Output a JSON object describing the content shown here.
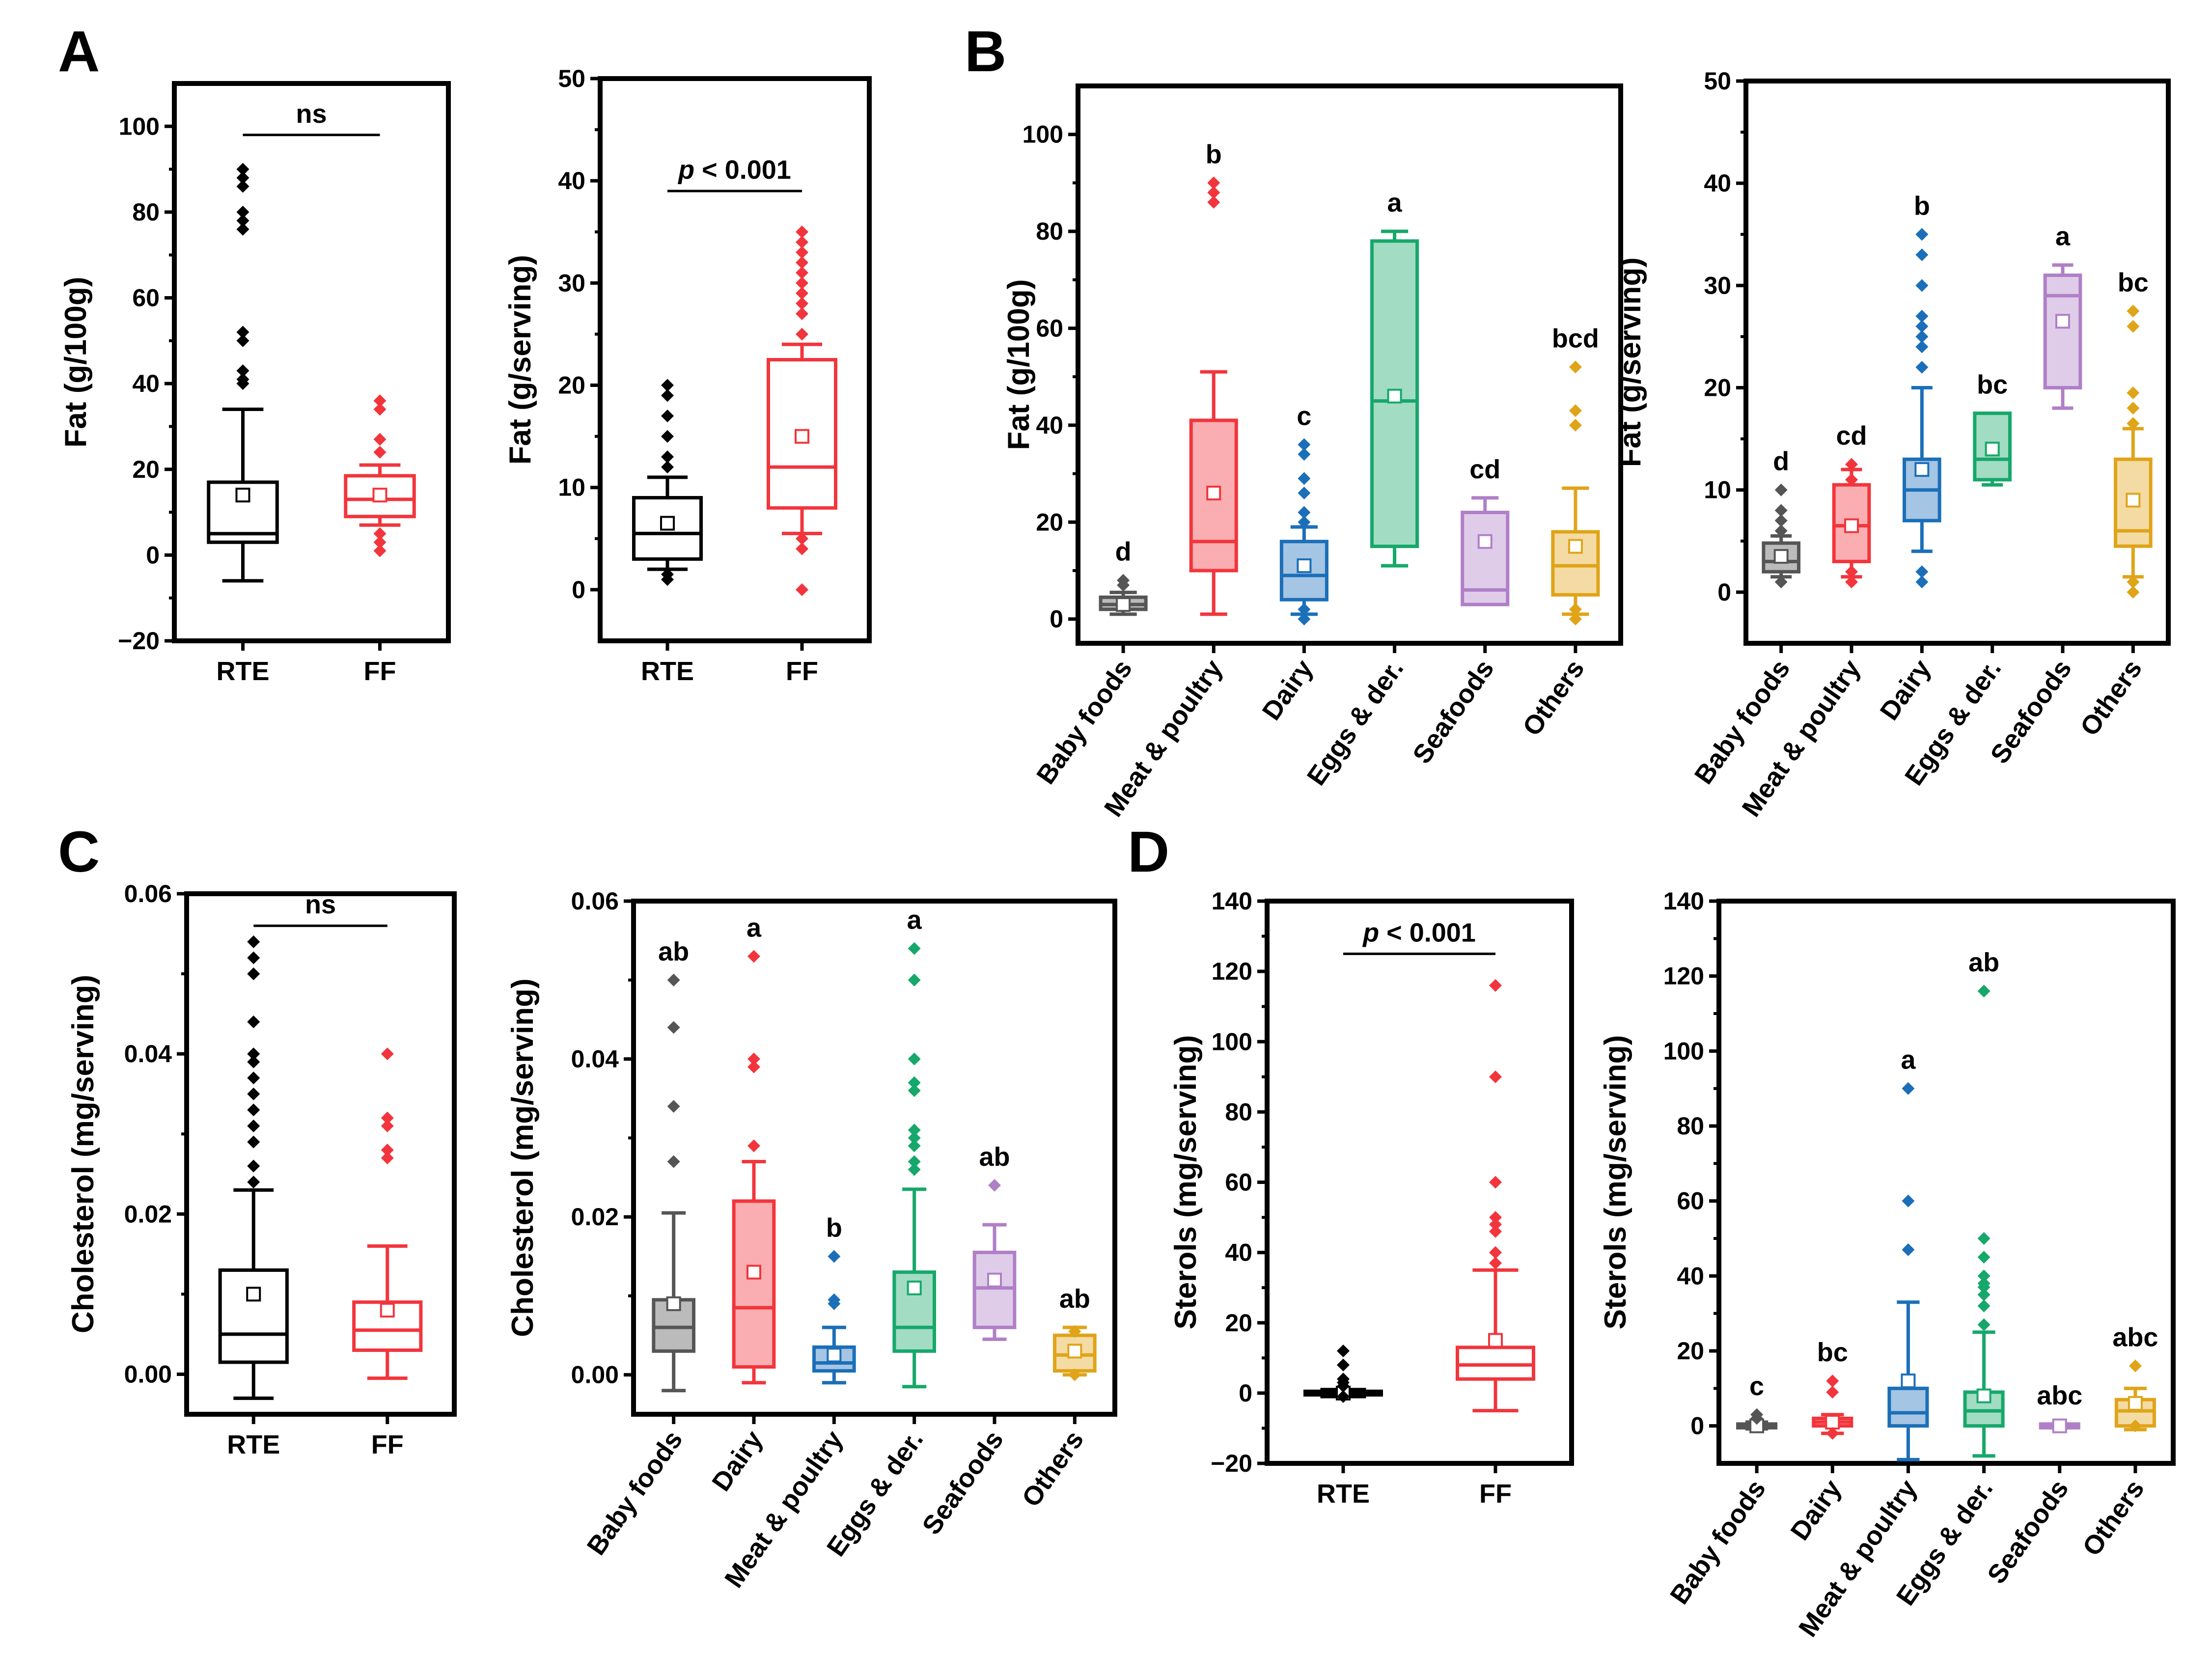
{
  "panel_letters": [
    "A",
    "B",
    "C",
    "D"
  ],
  "colors": {
    "black": "#000000",
    "red": "#f2353c",
    "blue": "#1b6fb8",
    "green": "#16a86a",
    "purple": "#b07fc7",
    "orange": "#e0a419",
    "gray": "#555555"
  },
  "chart_data": [
    {
      "id": "A1",
      "type": "box",
      "panel": "A",
      "ylabel": "Fat (g/100g)",
      "ylim": [
        -20,
        110
      ],
      "yticks": [
        -20,
        0,
        20,
        40,
        60,
        80,
        100
      ],
      "tick_labels": [
        "−20",
        "0",
        "20",
        "40",
        "60",
        "80",
        "100"
      ],
      "categories": [
        "RTE",
        "FF"
      ],
      "rotate": false,
      "bracket": {
        "from": 0,
        "to": 1,
        "y": 98,
        "label": "ns",
        "italic_p": false
      },
      "boxes": [
        {
          "color": "black",
          "fill": false,
          "q1": 3,
          "median": 5,
          "q3": 17,
          "lo": -6,
          "hi": 34,
          "mean": 14,
          "outliers": [
            40,
            41,
            43,
            50,
            52,
            76,
            78,
            80,
            86,
            88,
            90
          ]
        },
        {
          "color": "red",
          "fill": false,
          "q1": 9,
          "median": 13,
          "q3": 18.5,
          "lo": 7,
          "hi": 21,
          "mean": 14,
          "outliers": [
            1,
            3,
            5,
            24,
            27,
            34,
            36
          ]
        }
      ]
    },
    {
      "id": "A2",
      "type": "box",
      "panel": "A",
      "ylabel": "Fat (g/serving)",
      "ylim": [
        -5,
        50
      ],
      "yticks": [
        0,
        10,
        20,
        30,
        40,
        50
      ],
      "tick_labels": [
        "0",
        "10",
        "20",
        "30",
        "40",
        "50"
      ],
      "categories": [
        "RTE",
        "FF"
      ],
      "rotate": false,
      "bracket": {
        "from": 0,
        "to": 1,
        "y": 39,
        "label": "p < 0.001",
        "italic_p": true
      },
      "boxes": [
        {
          "color": "black",
          "fill": false,
          "q1": 3,
          "median": 5.5,
          "q3": 9,
          "lo": 2,
          "hi": 11,
          "mean": 6.5,
          "outliers": [
            1,
            1.5,
            12,
            13,
            15,
            17,
            19,
            20
          ]
        },
        {
          "color": "red",
          "fill": false,
          "q1": 8,
          "median": 12,
          "q3": 22.5,
          "lo": 5.5,
          "hi": 24,
          "mean": 15,
          "outliers": [
            0,
            4,
            5,
            25,
            27,
            28,
            29,
            30,
            31,
            32,
            33,
            34,
            35
          ]
        }
      ]
    },
    {
      "id": "B1",
      "type": "box",
      "panel": "B",
      "ylabel": "Fat (g/100g)",
      "ylim": [
        -5,
        110
      ],
      "yticks": [
        0,
        20,
        40,
        60,
        80,
        100
      ],
      "tick_labels": [
        "0",
        "20",
        "40",
        "60",
        "80",
        "100"
      ],
      "categories": [
        "Baby foods",
        "Meat & poultry",
        "Dairy",
        "Eggs & der.",
        "Seafoods",
        "Others"
      ],
      "rotate": true,
      "sig_labels": [
        "d",
        "b",
        "c",
        "a",
        "cd",
        "bcd"
      ],
      "boxes": [
        {
          "color": "gray",
          "fill": true,
          "q1": 2,
          "median": 3,
          "q3": 4.5,
          "lo": 1,
          "hi": 5.5,
          "mean": 3,
          "outliers": [
            7,
            8
          ]
        },
        {
          "color": "red",
          "fill": true,
          "q1": 10,
          "median": 16,
          "q3": 41,
          "lo": 1,
          "hi": 51,
          "mean": 26,
          "outliers": [
            86,
            88,
            90
          ]
        },
        {
          "color": "blue",
          "fill": true,
          "q1": 4,
          "median": 9,
          "q3": 16,
          "lo": 1,
          "hi": 19,
          "mean": 11,
          "outliers": [
            0,
            2,
            20,
            22,
            26,
            29,
            34,
            36
          ]
        },
        {
          "color": "green",
          "fill": true,
          "q1": 15,
          "median": 45,
          "q3": 78,
          "lo": 11,
          "hi": 80,
          "mean": 46,
          "outliers": []
        },
        {
          "color": "purple",
          "fill": true,
          "q1": 3,
          "median": 6,
          "q3": 22,
          "lo": 3,
          "hi": 25,
          "mean": 16,
          "outliers": []
        },
        {
          "color": "orange",
          "fill": true,
          "q1": 5,
          "median": 11,
          "q3": 18,
          "lo": 1,
          "hi": 27,
          "mean": 15,
          "outliers": [
            0,
            2,
            40,
            43,
            52
          ]
        }
      ]
    },
    {
      "id": "B2",
      "type": "box",
      "panel": "B",
      "ylabel": "Fat (g/serving)",
      "ylim": [
        -5,
        50
      ],
      "yticks": [
        0,
        10,
        20,
        30,
        40,
        50
      ],
      "tick_labels": [
        "0",
        "10",
        "20",
        "30",
        "40",
        "50"
      ],
      "categories": [
        "Baby foods",
        "Meat & poultry",
        "Dairy",
        "Eggs & der.",
        "Seafoods",
        "Others"
      ],
      "rotate": true,
      "sig_labels": [
        "d",
        "cd",
        "b",
        "bc",
        "a",
        "bc"
      ],
      "boxes": [
        {
          "color": "gray",
          "fill": true,
          "q1": 2,
          "median": 3,
          "q3": 4.8,
          "lo": 1.5,
          "hi": 5.5,
          "mean": 3.5,
          "outliers": [
            1,
            6,
            7,
            8,
            10
          ]
        },
        {
          "color": "red",
          "fill": true,
          "q1": 3,
          "median": 6.5,
          "q3": 10.5,
          "lo": 1.5,
          "hi": 12,
          "mean": 6.5,
          "outliers": [
            1,
            2,
            11,
            12.5
          ]
        },
        {
          "color": "blue",
          "fill": true,
          "q1": 7,
          "median": 10,
          "q3": 13,
          "lo": 4,
          "hi": 20,
          "mean": 12,
          "outliers": [
            1,
            2,
            22,
            24,
            25,
            26,
            27,
            30,
            33,
            35
          ]
        },
        {
          "color": "green",
          "fill": true,
          "q1": 11,
          "median": 13,
          "q3": 17.5,
          "lo": 10.5,
          "hi": 17.5,
          "mean": 14,
          "outliers": []
        },
        {
          "color": "purple",
          "fill": true,
          "q1": 20,
          "median": 29,
          "q3": 31,
          "lo": 18,
          "hi": 32,
          "mean": 26.5,
          "outliers": []
        },
        {
          "color": "orange",
          "fill": true,
          "q1": 4.5,
          "median": 6,
          "q3": 13,
          "lo": 1.5,
          "hi": 16,
          "mean": 9,
          "outliers": [
            0,
            1,
            16.5,
            18,
            19.5,
            26,
            27.5
          ]
        }
      ]
    },
    {
      "id": "C1",
      "type": "box",
      "panel": "C",
      "ylabel": "Cholesterol (mg/serving)",
      "ylim": [
        -0.005,
        0.06
      ],
      "yticks": [
        0,
        0.02,
        0.04,
        0.06
      ],
      "tick_labels": [
        "0.00",
        "0.02",
        "0.04",
        "0.06"
      ],
      "categories": [
        "RTE",
        "FF"
      ],
      "rotate": false,
      "bracket": {
        "from": 0,
        "to": 1,
        "y": 0.056,
        "label": "ns",
        "italic_p": false
      },
      "boxes": [
        {
          "color": "black",
          "fill": false,
          "q1": 0.0015,
          "median": 0.005,
          "q3": 0.013,
          "lo": -0.003,
          "hi": 0.023,
          "mean": 0.01,
          "outliers": [
            0.024,
            0.026,
            0.029,
            0.031,
            0.033,
            0.035,
            0.037,
            0.039,
            0.04,
            0.044,
            0.05,
            0.052,
            0.054
          ]
        },
        {
          "color": "red",
          "fill": false,
          "q1": 0.003,
          "median": 0.0055,
          "q3": 0.009,
          "lo": -0.0005,
          "hi": 0.016,
          "mean": 0.008,
          "outliers": [
            0.027,
            0.028,
            0.031,
            0.032,
            0.04
          ]
        }
      ]
    },
    {
      "id": "C2",
      "type": "box",
      "panel": "C",
      "ylabel": "Cholesterol (mg/serving)",
      "ylim": [
        -0.005,
        0.06
      ],
      "yticks": [
        0,
        0.02,
        0.04,
        0.06
      ],
      "tick_labels": [
        "0.00",
        "0.02",
        "0.04",
        "0.06"
      ],
      "categories": [
        "Baby foods",
        "Dairy",
        "Meat & poultry",
        "Eggs & der.",
        "Seafoods",
        "Others"
      ],
      "rotate": true,
      "sig_labels": [
        "ab",
        "a",
        "b",
        "a",
        "ab",
        "ab"
      ],
      "boxes": [
        {
          "color": "gray",
          "fill": true,
          "q1": 0.003,
          "median": 0.006,
          "q3": 0.0095,
          "lo": -0.002,
          "hi": 0.0205,
          "mean": 0.009,
          "outliers": [
            0.027,
            0.034,
            0.044,
            0.05
          ]
        },
        {
          "color": "red",
          "fill": true,
          "q1": 0.001,
          "median": 0.0085,
          "q3": 0.022,
          "lo": -0.001,
          "hi": 0.027,
          "mean": 0.013,
          "outliers": [
            0.029,
            0.039,
            0.04,
            0.053
          ]
        },
        {
          "color": "blue",
          "fill": true,
          "q1": 0.0005,
          "median": 0.0015,
          "q3": 0.0035,
          "lo": -0.001,
          "hi": 0.006,
          "mean": 0.0025,
          "outliers": [
            0.009,
            0.0095,
            0.015
          ]
        },
        {
          "color": "green",
          "fill": true,
          "q1": 0.003,
          "median": 0.006,
          "q3": 0.013,
          "lo": -0.0015,
          "hi": 0.0235,
          "mean": 0.011,
          "outliers": [
            0.026,
            0.027,
            0.029,
            0.03,
            0.031,
            0.036,
            0.037,
            0.04,
            0.05,
            0.054
          ]
        },
        {
          "color": "purple",
          "fill": true,
          "q1": 0.006,
          "median": 0.011,
          "q3": 0.0155,
          "lo": 0.0045,
          "hi": 0.019,
          "mean": 0.012,
          "outliers": [
            0.024
          ]
        },
        {
          "color": "orange",
          "fill": true,
          "q1": 0.0005,
          "median": 0.0025,
          "q3": 0.005,
          "lo": 0,
          "hi": 0.006,
          "mean": 0.003,
          "outliers": [
            0,
            0.0055
          ]
        }
      ]
    },
    {
      "id": "D1",
      "type": "box",
      "panel": "D",
      "ylabel": "Sterols (mg/serving)",
      "ylim": [
        -20,
        140
      ],
      "yticks": [
        -20,
        0,
        20,
        40,
        60,
        80,
        100,
        120,
        140
      ],
      "tick_labels": [
        "−20",
        "0",
        "20",
        "40",
        "60",
        "80",
        "100",
        "120",
        "140"
      ],
      "categories": [
        "RTE",
        "FF"
      ],
      "rotate": false,
      "bracket": {
        "from": 0,
        "to": 1,
        "y": 125,
        "label": "p < 0.001",
        "italic_p": true
      },
      "boxes": [
        {
          "color": "black",
          "fill": false,
          "q1": -0.5,
          "median": 0,
          "q3": 0.5,
          "lo": -1,
          "hi": 1,
          "mean": 0,
          "outliers": [
            -1,
            2,
            3,
            4,
            8,
            12
          ]
        },
        {
          "color": "red",
          "fill": false,
          "q1": 4,
          "median": 8,
          "q3": 13,
          "lo": -5,
          "hi": 35,
          "mean": 15,
          "outliers": [
            37,
            40,
            46,
            48,
            50,
            60,
            90,
            116
          ]
        }
      ]
    },
    {
      "id": "D2",
      "type": "box",
      "panel": "D",
      "ylabel": "Sterols (mg/serving)",
      "ylim": [
        -10,
        140
      ],
      "yticks": [
        0,
        20,
        40,
        60,
        80,
        100,
        120,
        140
      ],
      "tick_labels": [
        "0",
        "20",
        "40",
        "60",
        "80",
        "100",
        "120",
        "140"
      ],
      "categories": [
        "Baby foods",
        "Dairy",
        "Meat & poultry",
        "Eggs & der.",
        "Seafoods",
        "Others"
      ],
      "rotate": true,
      "sig_labels": [
        "c",
        "bc",
        "a",
        "ab",
        "abc",
        "abc"
      ],
      "boxes": [
        {
          "color": "gray",
          "fill": true,
          "q1": -0.5,
          "median": 0,
          "q3": 0.5,
          "lo": -0.8,
          "hi": 1,
          "mean": 0,
          "outliers": [
            2,
            3
          ]
        },
        {
          "color": "red",
          "fill": true,
          "q1": 0,
          "median": 1,
          "q3": 2,
          "lo": -2,
          "hi": 3,
          "mean": 1,
          "outliers": [
            -2,
            9,
            12
          ]
        },
        {
          "color": "blue",
          "fill": true,
          "q1": 0,
          "median": 3.5,
          "q3": 10,
          "lo": -9,
          "hi": 33,
          "mean": 12,
          "outliers": [
            47,
            60,
            90
          ]
        },
        {
          "color": "green",
          "fill": true,
          "q1": 0,
          "median": 4,
          "q3": 9,
          "lo": -8,
          "hi": 25,
          "mean": 8,
          "outliers": [
            27,
            32,
            35,
            37,
            38,
            40,
            45,
            50,
            116
          ]
        },
        {
          "color": "purple",
          "fill": true,
          "q1": -0.5,
          "median": 0,
          "q3": 0.5,
          "lo": -0.5,
          "hi": 0.5,
          "mean": 0,
          "outliers": []
        },
        {
          "color": "orange",
          "fill": true,
          "q1": 0,
          "median": 4,
          "q3": 7,
          "lo": -1,
          "hi": 10,
          "mean": 6,
          "outliers": [
            0,
            16
          ]
        }
      ]
    }
  ]
}
